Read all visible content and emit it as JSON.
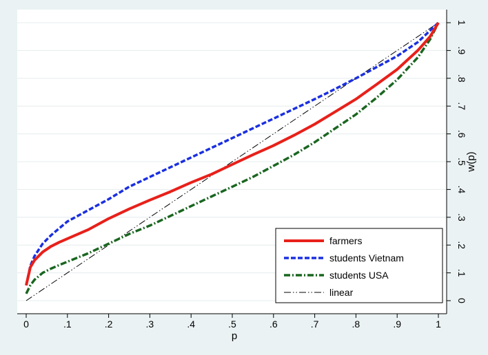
{
  "chart_data": {
    "type": "line",
    "xlabel": "p",
    "ylabel": "w(p)",
    "xlim": [
      0,
      1
    ],
    "ylim": [
      0,
      1
    ],
    "grid": true,
    "legend_placement": "bottom-right",
    "x_ticks": [
      {
        "value": 0,
        "label": "0"
      },
      {
        "value": 0.1,
        "label": ".1"
      },
      {
        "value": 0.2,
        "label": ".2"
      },
      {
        "value": 0.3,
        "label": ".3"
      },
      {
        "value": 0.4,
        "label": ".4"
      },
      {
        "value": 0.5,
        "label": ".5"
      },
      {
        "value": 0.6,
        "label": ".6"
      },
      {
        "value": 0.7,
        "label": ".7"
      },
      {
        "value": 0.8,
        "label": ".8"
      },
      {
        "value": 0.9,
        "label": ".9"
      },
      {
        "value": 1,
        "label": "1"
      }
    ],
    "y_ticks": [
      {
        "value": 0,
        "label": "0"
      },
      {
        "value": 0.1,
        "label": ".1"
      },
      {
        "value": 0.2,
        "label": ".2"
      },
      {
        "value": 0.3,
        "label": ".3"
      },
      {
        "value": 0.4,
        "label": ".4"
      },
      {
        "value": 0.5,
        "label": ".5"
      },
      {
        "value": 0.6,
        "label": ".6"
      },
      {
        "value": 0.7,
        "label": ".7"
      },
      {
        "value": 0.8,
        "label": ".8"
      },
      {
        "value": 0.9,
        "label": ".9"
      },
      {
        "value": 1,
        "label": "1"
      }
    ],
    "series": [
      {
        "name": "farmers",
        "color": "#e8201a",
        "dash": "solid",
        "points": [
          [
            0,
            0.055
          ],
          [
            0.01,
            0.12
          ],
          [
            0.02,
            0.145
          ],
          [
            0.04,
            0.175
          ],
          [
            0.06,
            0.195
          ],
          [
            0.08,
            0.21
          ],
          [
            0.1,
            0.223
          ],
          [
            0.15,
            0.255
          ],
          [
            0.2,
            0.295
          ],
          [
            0.25,
            0.33
          ],
          [
            0.3,
            0.362
          ],
          [
            0.35,
            0.392
          ],
          [
            0.4,
            0.425
          ],
          [
            0.45,
            0.455
          ],
          [
            0.5,
            0.49
          ],
          [
            0.55,
            0.525
          ],
          [
            0.6,
            0.558
          ],
          [
            0.65,
            0.595
          ],
          [
            0.7,
            0.635
          ],
          [
            0.75,
            0.68
          ],
          [
            0.8,
            0.725
          ],
          [
            0.85,
            0.778
          ],
          [
            0.9,
            0.832
          ],
          [
            0.95,
            0.9
          ],
          [
            0.98,
            0.95
          ],
          [
            1,
            1
          ]
        ]
      },
      {
        "name": "students Vietnam",
        "color": "#1a2fe0",
        "dash": "dashed",
        "points": [
          [
            0,
            0.055
          ],
          [
            0.01,
            0.125
          ],
          [
            0.02,
            0.16
          ],
          [
            0.04,
            0.205
          ],
          [
            0.06,
            0.235
          ],
          [
            0.08,
            0.26
          ],
          [
            0.1,
            0.285
          ],
          [
            0.15,
            0.325
          ],
          [
            0.2,
            0.365
          ],
          [
            0.25,
            0.41
          ],
          [
            0.3,
            0.445
          ],
          [
            0.35,
            0.48
          ],
          [
            0.4,
            0.515
          ],
          [
            0.45,
            0.55
          ],
          [
            0.5,
            0.585
          ],
          [
            0.55,
            0.62
          ],
          [
            0.6,
            0.655
          ],
          [
            0.65,
            0.69
          ],
          [
            0.7,
            0.725
          ],
          [
            0.75,
            0.762
          ],
          [
            0.8,
            0.8
          ],
          [
            0.85,
            0.84
          ],
          [
            0.9,
            0.88
          ],
          [
            0.95,
            0.93
          ],
          [
            1,
            1
          ]
        ]
      },
      {
        "name": "students USA",
        "color": "#1a6620",
        "dash": "dash-dot",
        "points": [
          [
            0,
            0.025
          ],
          [
            0.01,
            0.055
          ],
          [
            0.02,
            0.075
          ],
          [
            0.04,
            0.1
          ],
          [
            0.06,
            0.115
          ],
          [
            0.08,
            0.128
          ],
          [
            0.1,
            0.14
          ],
          [
            0.15,
            0.17
          ],
          [
            0.2,
            0.205
          ],
          [
            0.25,
            0.24
          ],
          [
            0.3,
            0.27
          ],
          [
            0.35,
            0.305
          ],
          [
            0.4,
            0.34
          ],
          [
            0.45,
            0.375
          ],
          [
            0.5,
            0.41
          ],
          [
            0.55,
            0.445
          ],
          [
            0.6,
            0.485
          ],
          [
            0.65,
            0.525
          ],
          [
            0.7,
            0.57
          ],
          [
            0.75,
            0.62
          ],
          [
            0.8,
            0.67
          ],
          [
            0.85,
            0.73
          ],
          [
            0.9,
            0.795
          ],
          [
            0.95,
            0.875
          ],
          [
            0.98,
            0.94
          ],
          [
            1,
            1
          ]
        ]
      },
      {
        "name": "linear",
        "color": "#000000",
        "dash": "dash-dot-dot",
        "points": [
          [
            0,
            0
          ],
          [
            1,
            1
          ]
        ]
      }
    ]
  }
}
